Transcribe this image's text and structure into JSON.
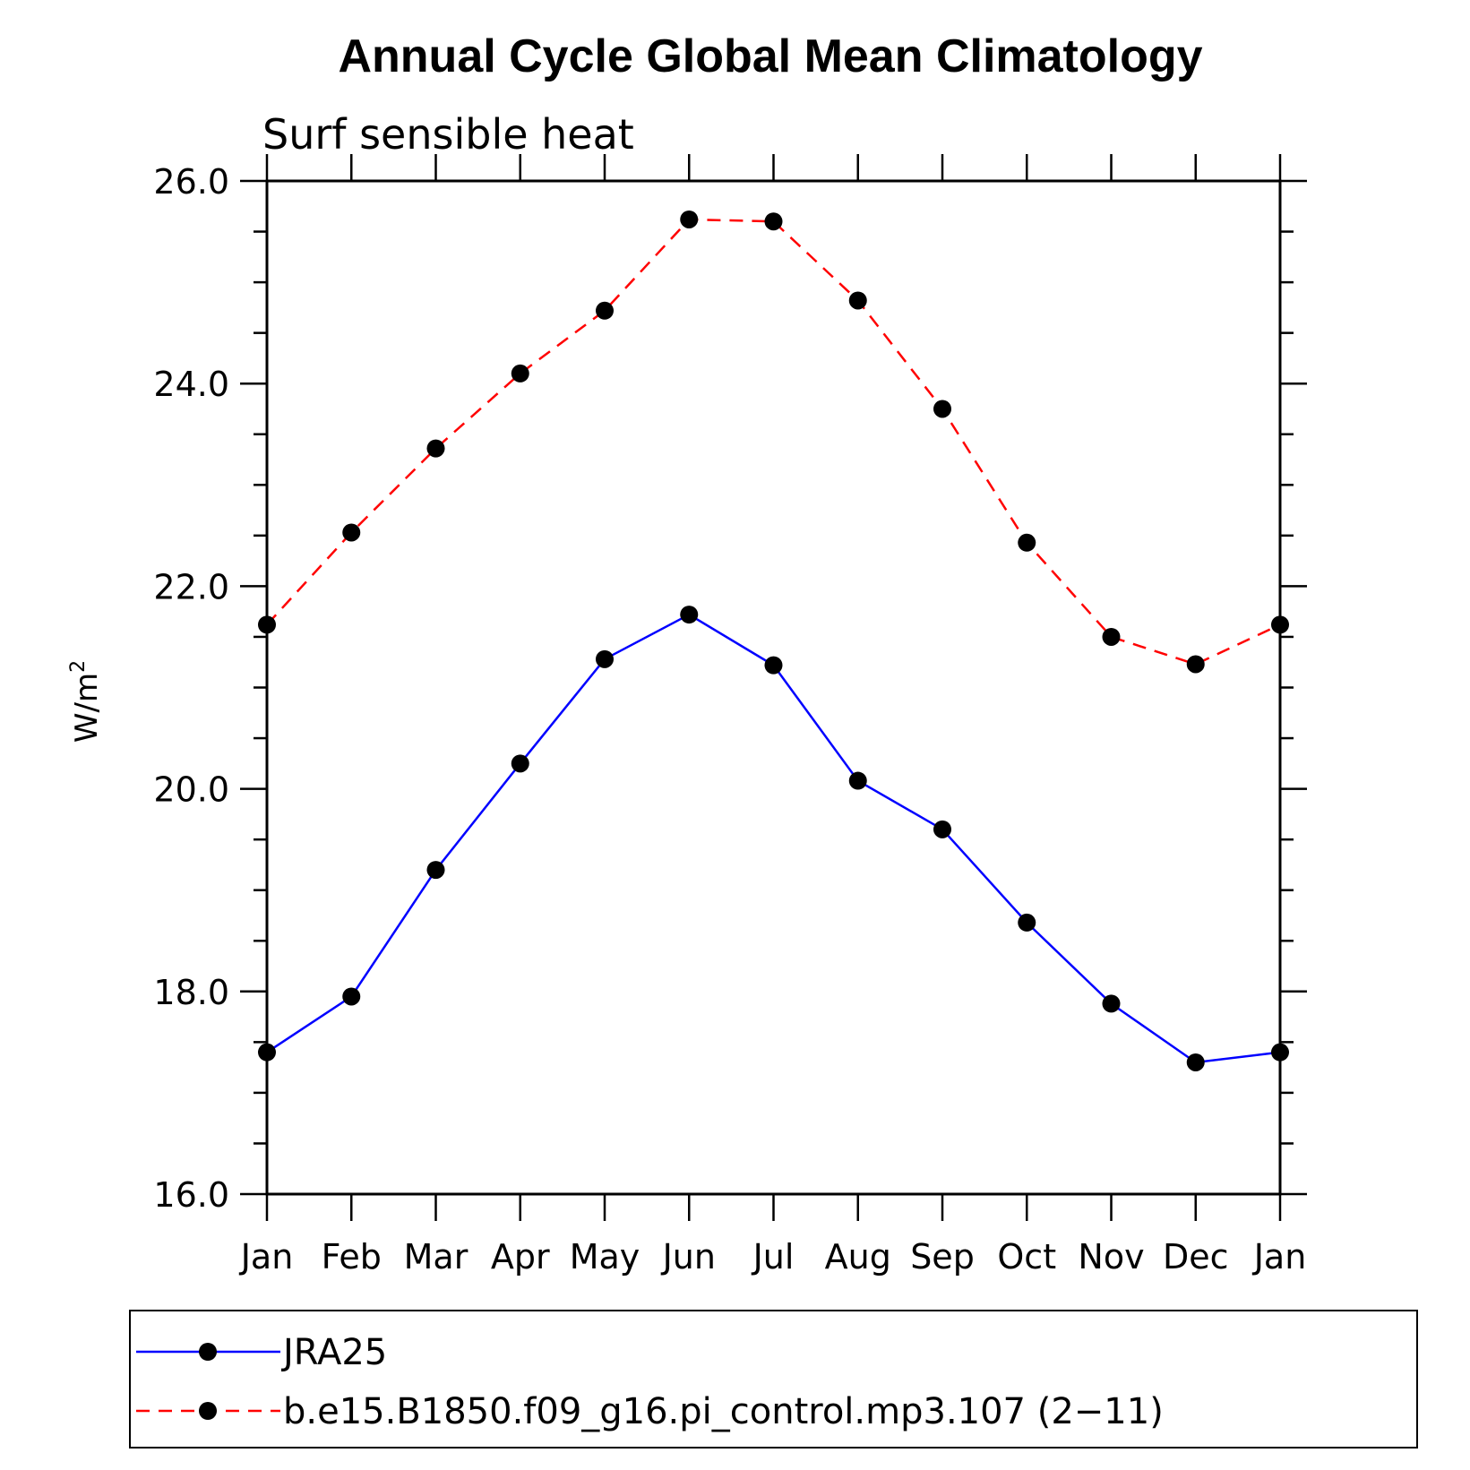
{
  "chart_data": {
    "type": "line",
    "title": "Annual Cycle Global Mean Climatology",
    "subtitle": "Surf sensible heat",
    "xlabel": "",
    "ylabel_base": "W/m",
    "ylabel_sup": "2",
    "categories": [
      "Jan",
      "Feb",
      "Mar",
      "Apr",
      "May",
      "Jun",
      "Jul",
      "Aug",
      "Sep",
      "Oct",
      "Nov",
      "Dec",
      "Jan"
    ],
    "ylim": [
      16.0,
      26.0
    ],
    "yticks": [
      "16.0",
      "18.0",
      "20.0",
      "22.0",
      "24.0",
      "26.0"
    ],
    "grid": false,
    "legend_position": "bottom",
    "series": [
      {
        "name": "JRA25",
        "color": "#0000ff",
        "style": "solid",
        "values": [
          17.4,
          17.95,
          19.2,
          20.25,
          21.28,
          21.72,
          21.22,
          20.08,
          19.6,
          18.68,
          17.88,
          17.3,
          17.4
        ]
      },
      {
        "name": "b.e15.B1850.f09_g16.pi_control.mp3.107 (2−11)",
        "color": "#ff0000",
        "style": "dashed",
        "values": [
          21.62,
          22.53,
          23.36,
          24.1,
          24.72,
          25.62,
          25.6,
          24.82,
          23.75,
          22.43,
          21.5,
          21.23,
          21.62
        ]
      }
    ]
  }
}
